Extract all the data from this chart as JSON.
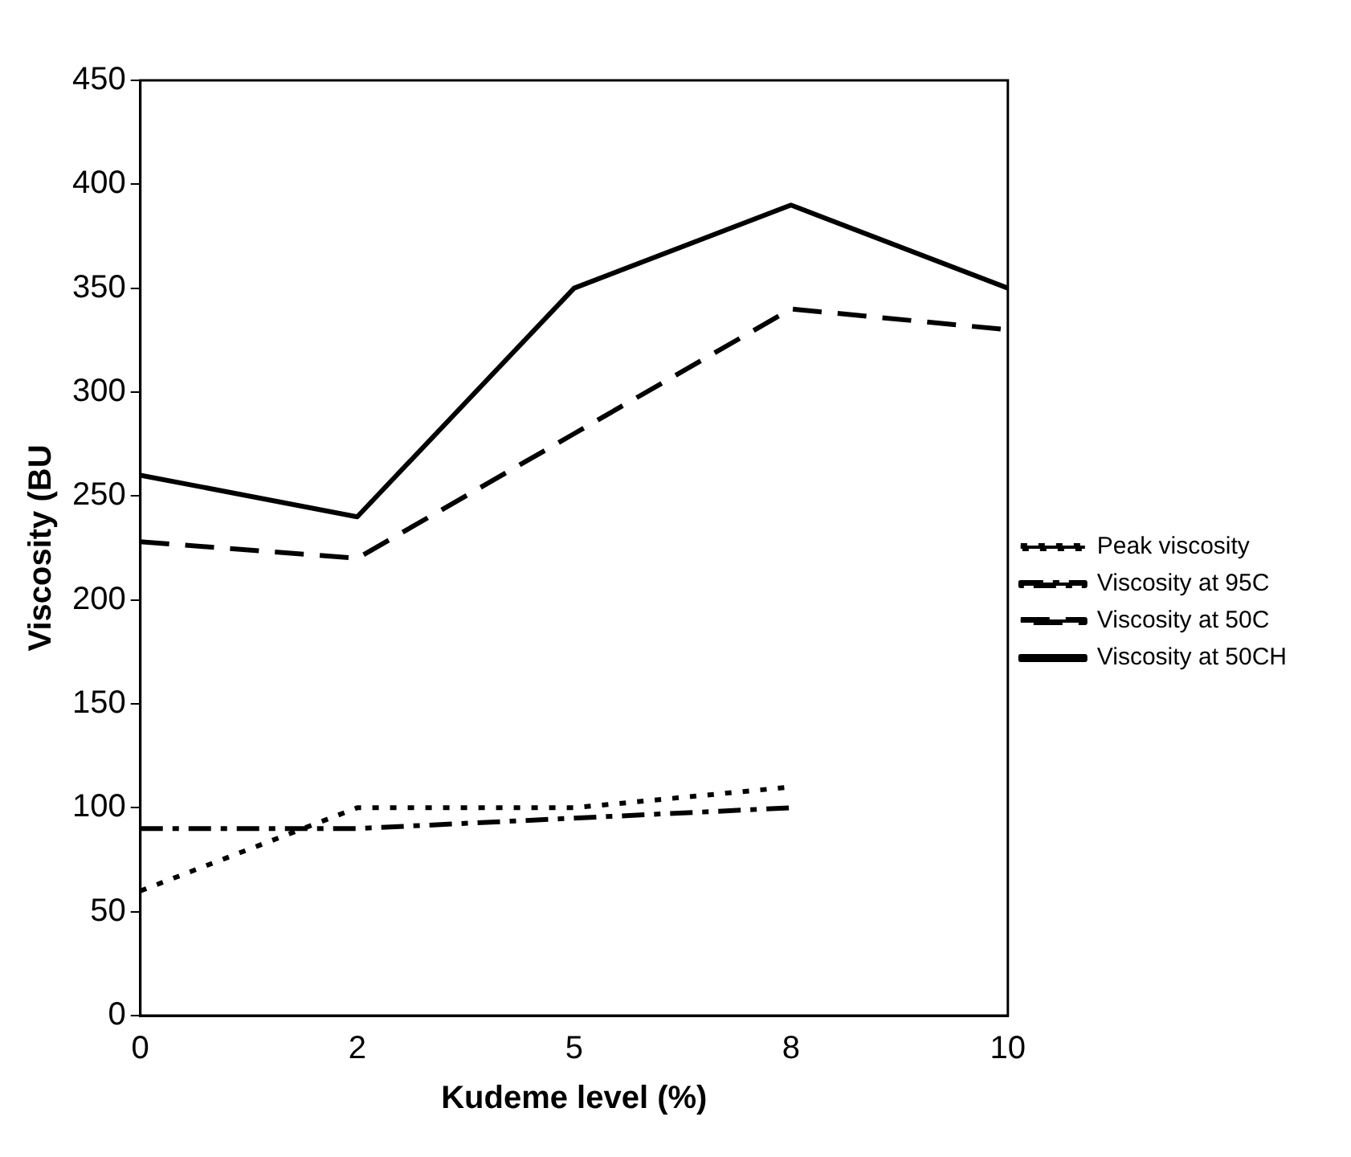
{
  "chart_data": {
    "type": "line",
    "xlabel": "Kudeme level (%)",
    "ylabel": "Viscosity (BU",
    "categories": [
      "0",
      "2",
      "5",
      "8",
      "10"
    ],
    "series": [
      {
        "name": "Peak viscosity",
        "color": "#000000",
        "line_style": "dotted",
        "values": [
          60,
          100,
          100,
          110,
          null
        ]
      },
      {
        "name": "Viscosity at 95C",
        "color": "#000000",
        "line_style": "dashdot",
        "values": [
          90,
          90,
          95,
          100,
          null
        ]
      },
      {
        "name": "Viscosity at 50C",
        "color": "#000000",
        "line_style": "dashed",
        "values": [
          228,
          220,
          280,
          340,
          330
        ]
      },
      {
        "name": "Viscosity at 50CH",
        "color": "#000000",
        "line_style": "solid",
        "values": [
          260,
          240,
          350,
          390,
          350
        ]
      }
    ],
    "ylim": [
      0,
      450
    ],
    "yticks": [
      0,
      50,
      100,
      150,
      200,
      250,
      300,
      350,
      400,
      450
    ],
    "grid": false,
    "legend": "right",
    "marker": "none"
  }
}
